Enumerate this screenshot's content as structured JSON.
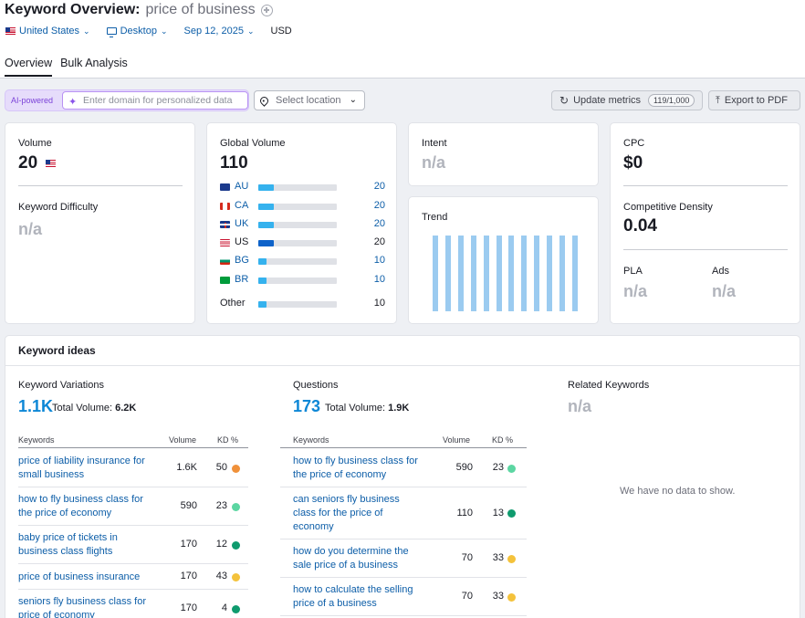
{
  "header": {
    "title_label": "Keyword Overview:",
    "keyword": "price of business",
    "filters": {
      "country": "United States",
      "device": "Desktop",
      "date": "Sep 12, 2025",
      "currency": "USD"
    },
    "tabs": [
      "Overview",
      "Bulk Analysis"
    ],
    "active_tab": "Overview"
  },
  "toolbar": {
    "ai_label": "AI-powered",
    "domain_placeholder": "Enter domain for personalized data",
    "location_placeholder": "Select location",
    "update_label": "Update metrics",
    "update_count": "119/1,000",
    "export_label": "Export to PDF"
  },
  "volume_card": {
    "volume_label": "Volume",
    "volume_value": "20",
    "kd_label": "Keyword Difficulty",
    "kd_value": "n/a"
  },
  "global_volume": {
    "label": "Global Volume",
    "value": "110",
    "rows": [
      {
        "code": "AU",
        "value": "20",
        "share": 0.2
      },
      {
        "code": "CA",
        "value": "20",
        "share": 0.2
      },
      {
        "code": "UK",
        "value": "20",
        "share": 0.2
      },
      {
        "code": "US",
        "value": "20",
        "share": 0.2
      },
      {
        "code": "BG",
        "value": "10",
        "share": 0.1
      },
      {
        "code": "BR",
        "value": "10",
        "share": 0.1
      }
    ],
    "other_label": "Other",
    "other_value": "10",
    "other_share": 0.1
  },
  "intent": {
    "label": "Intent",
    "value": "n/a"
  },
  "trend": {
    "label": "Trend",
    "values": [
      1,
      1,
      1,
      1,
      1,
      1,
      1,
      1,
      1,
      1,
      1,
      1
    ]
  },
  "cpc_card": {
    "cpc_label": "CPC",
    "cpc_value": "$0",
    "density_label": "Competitive Density",
    "density_value": "0.04",
    "pla_label": "PLA",
    "pla_value": "n/a",
    "ads_label": "Ads",
    "ads_value": "n/a"
  },
  "keyword_ideas": {
    "title": "Keyword ideas",
    "table_headers": {
      "keywords": "Keywords",
      "volume": "Volume",
      "kd": "KD %"
    },
    "variations": {
      "title": "Keyword Variations",
      "count": "1.1K",
      "total_label": "Total Volume:",
      "total_value": "6.2K",
      "rows": [
        {
          "keyword": "price of liability insurance for small business",
          "volume": "1.6K",
          "kd": "50",
          "color": "#f0913a"
        },
        {
          "keyword": "how to fly business class for the price of economy",
          "volume": "590",
          "kd": "23",
          "color": "#5cd6a2"
        },
        {
          "keyword": "baby price of tickets in business class flights",
          "volume": "170",
          "kd": "12",
          "color": "#0f9b6e"
        },
        {
          "keyword": "price of business insurance",
          "volume": "170",
          "kd": "43",
          "color": "#f4c23b"
        },
        {
          "keyword": "seniors fly business class for price of economy",
          "volume": "170",
          "kd": "4",
          "color": "#0f9b6e"
        }
      ]
    },
    "questions": {
      "title": "Questions",
      "count": "173",
      "total_label": "Total Volume:",
      "total_value": "1.9K",
      "rows": [
        {
          "keyword": "how to fly business class for the price of economy",
          "volume": "590",
          "kd": "23",
          "color": "#5cd6a2"
        },
        {
          "keyword": "can seniors fly business class for the price of economy",
          "volume": "110",
          "kd": "13",
          "color": "#0f9b6e"
        },
        {
          "keyword": "how do you determine the sale price of a business",
          "volume": "70",
          "kd": "33",
          "color": "#f4c23b"
        },
        {
          "keyword": "how to calculate the selling price of a business",
          "volume": "70",
          "kd": "33",
          "color": "#f4c23b"
        }
      ]
    },
    "related": {
      "title": "Related Keywords",
      "value": "n/a",
      "empty_message": "We have no data to show."
    }
  }
}
